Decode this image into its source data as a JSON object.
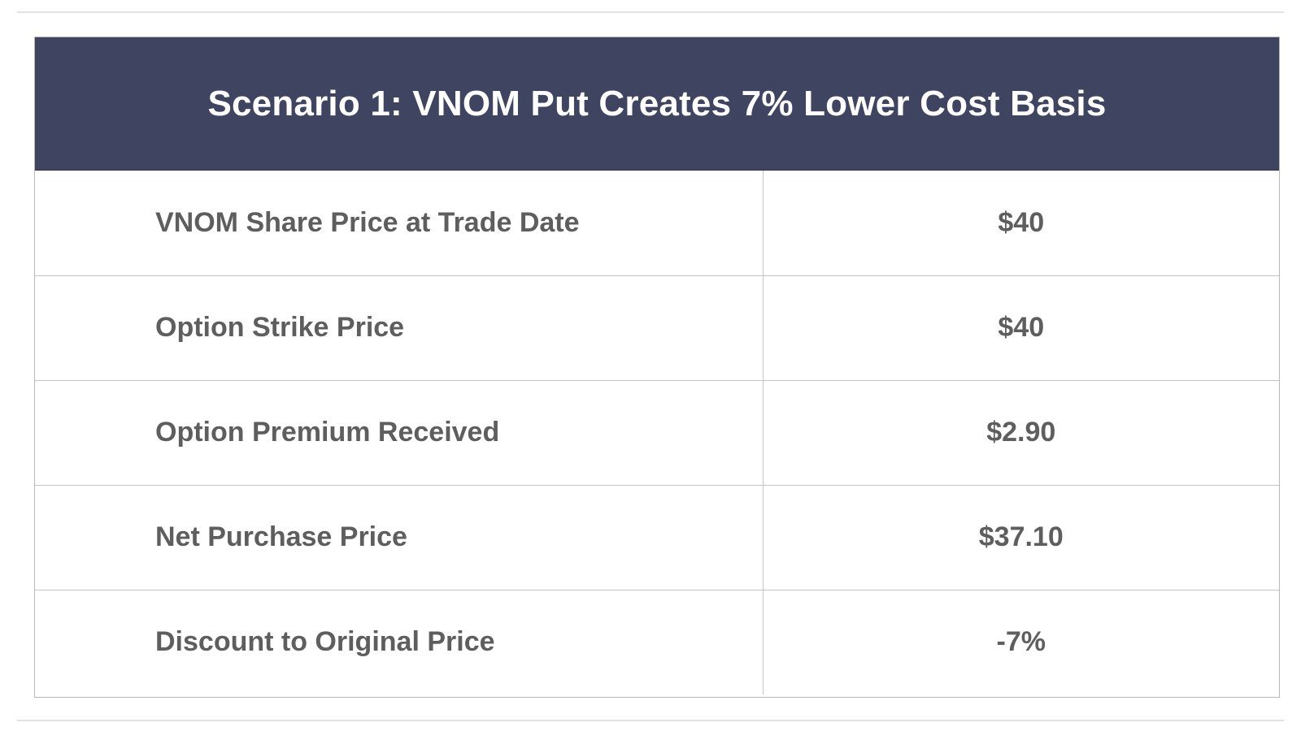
{
  "table": {
    "title": "Scenario 1: VNOM Put Creates 7% Lower Cost Basis",
    "rows": [
      {
        "label": "VNOM Share Price at Trade Date",
        "value": "$40"
      },
      {
        "label": "Option Strike Price",
        "value": "$40"
      },
      {
        "label": "Option Premium Received",
        "value": "$2.90"
      },
      {
        "label": "Net Purchase Price",
        "value": "$37.10"
      },
      {
        "label": "Discount to Original Price",
        "value": "-7%"
      }
    ]
  },
  "colors": {
    "header_background": "#3f4460",
    "header_text": "#ffffff",
    "body_text": "#5e5e5e",
    "border": "#c4c4c4"
  }
}
